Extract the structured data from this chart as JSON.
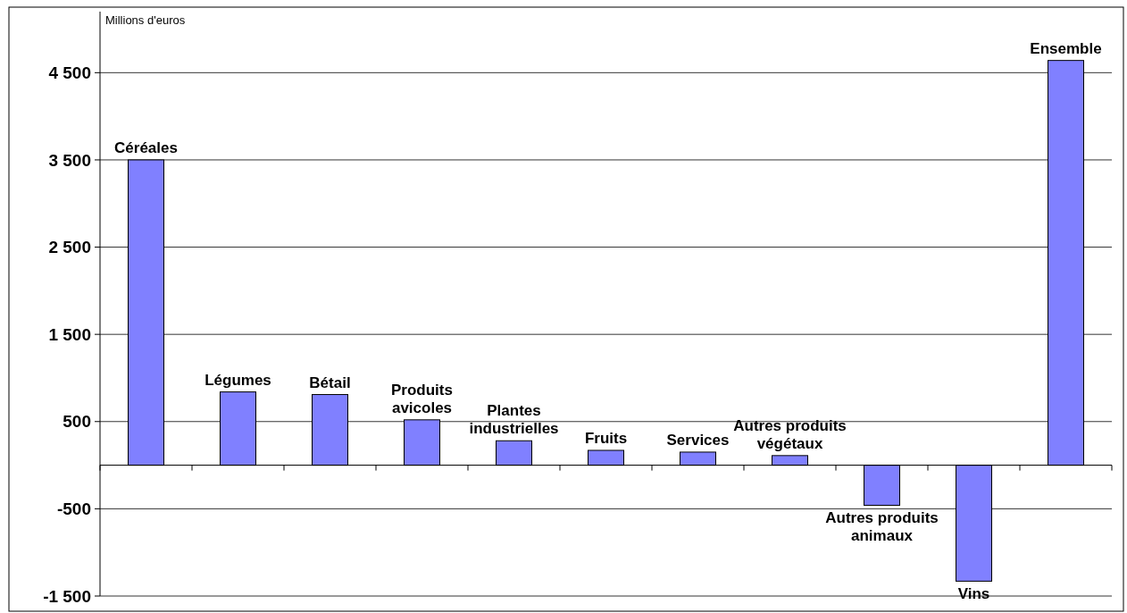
{
  "chart_data": {
    "type": "bar",
    "ylabel": "Millions d'euros",
    "categories": [
      "Céréales",
      "Légumes",
      "Bétail",
      "Produits avicoles",
      "Plantes industrielles",
      "Fruits",
      "Services",
      "Autres produits végétaux",
      "Autres produits animaux",
      "Vins",
      "Ensemble"
    ],
    "values": [
      3500,
      840,
      810,
      520,
      280,
      170,
      150,
      110,
      -460,
      -1330,
      4640
    ],
    "color": "#8080ff",
    "ylim": [
      -1500,
      5200
    ],
    "yticks": [
      {
        "value": -1500,
        "label": "-1 500"
      },
      {
        "value": -500,
        "label": "-500"
      },
      {
        "value": 500,
        "label": "500"
      },
      {
        "value": 1500,
        "label": "1 500"
      },
      {
        "value": 2500,
        "label": "2 500"
      },
      {
        "value": 3500,
        "label": "3 500"
      },
      {
        "value": 4500,
        "label": "4 500"
      }
    ],
    "grid": "y"
  }
}
